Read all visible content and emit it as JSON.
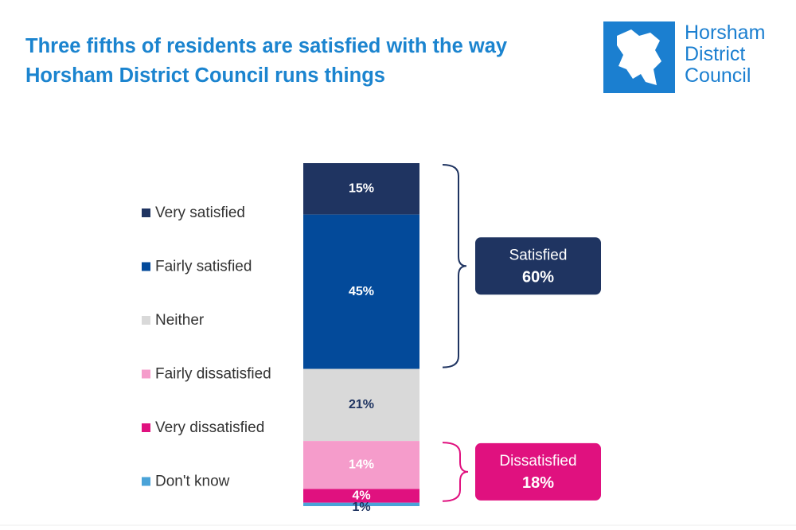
{
  "chart_data": {
    "type": "stacked-bar",
    "title": "Three fifths of residents are satisfied with the way Horsham District Council runs things",
    "logo_text": [
      "Horsham",
      "District",
      "Council"
    ],
    "series": [
      {
        "name": "Very satisfied",
        "color": "#1f3461",
        "label_color": "#ffffff",
        "values": [
          15
        ],
        "value_labels": [
          "15%"
        ]
      },
      {
        "name": "Fairly satisfied",
        "color": "#034a9a",
        "label_color": "#ffffff",
        "values": [
          45
        ],
        "value_labels": [
          "45%"
        ]
      },
      {
        "name": "Neither",
        "color": "#d9d9d9",
        "label_color": "#1f3461",
        "values": [
          21
        ],
        "value_labels": [
          "21%"
        ]
      },
      {
        "name": "Fairly dissatisfied",
        "color": "#f59ccb",
        "label_color": "#ffffff",
        "values": [
          14
        ],
        "value_labels": [
          "14%"
        ]
      },
      {
        "name": "Very dissatisfied",
        "color": "#e0117f",
        "label_color": "#ffffff",
        "values": [
          4
        ],
        "value_labels": [
          "4%"
        ]
      },
      {
        "name": "Don't know",
        "color": "#4aa3d8",
        "label_color": "#1f3461",
        "values": [
          1
        ],
        "value_labels": [
          "1%"
        ]
      }
    ],
    "annotations": [
      {
        "text": "Satisfied",
        "value": 60,
        "value_label": "60%",
        "color": "#1f3461"
      },
      {
        "text": "Dissatisfied",
        "value": 18,
        "value_label": "18%",
        "color": "#e0117f"
      }
    ]
  }
}
